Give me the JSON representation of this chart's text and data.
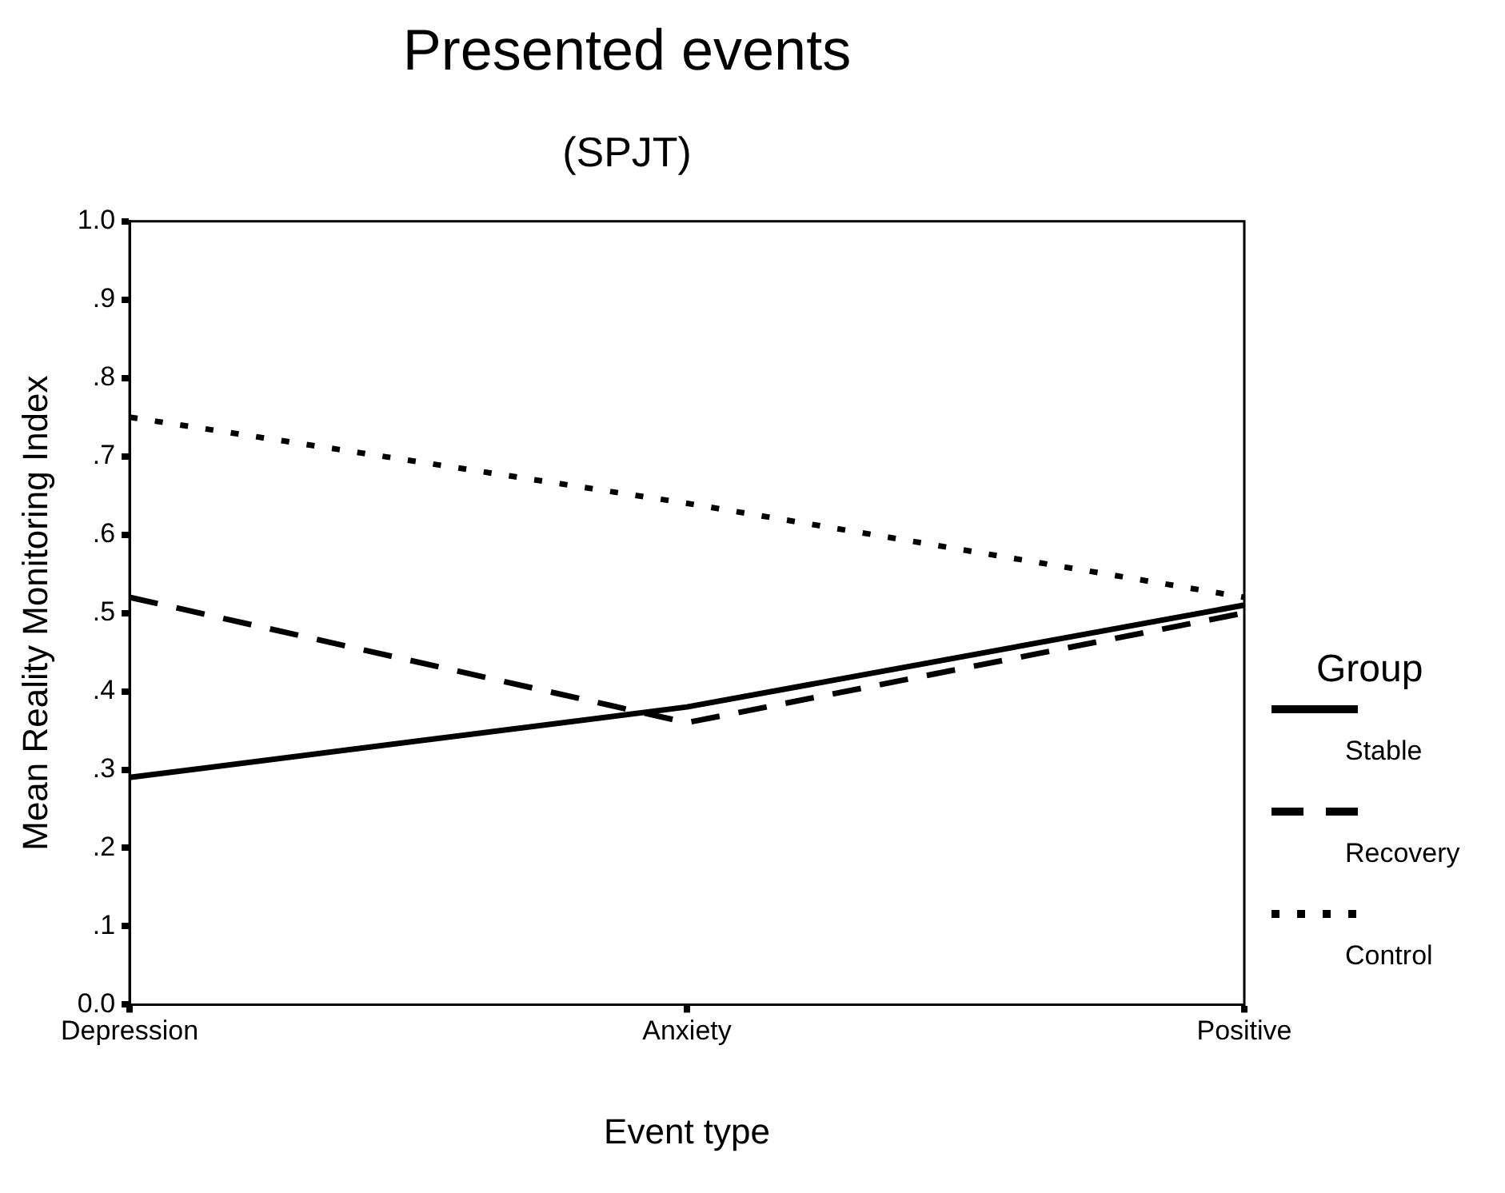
{
  "chart_data": {
    "type": "line",
    "title": "Presented events",
    "subtitle": "(SPJT)",
    "xlabel": "Event type",
    "ylabel": "Mean Reality Monitoring Index",
    "categories": [
      "Depression",
      "Anxiety",
      "Positive"
    ],
    "series": [
      {
        "name": "Stable",
        "color": "#000000",
        "line_style": "solid",
        "values": [
          0.29,
          0.38,
          0.51
        ]
      },
      {
        "name": "Recovery",
        "color": "#000000",
        "line_style": "dashed",
        "values": [
          0.52,
          0.36,
          0.5
        ]
      },
      {
        "name": "Control",
        "color": "#000000",
        "line_style": "dotted",
        "values": [
          0.75,
          0.64,
          0.52
        ]
      }
    ],
    "ylim": [
      0,
      1
    ],
    "yticks": [
      {
        "value": 0,
        "label": "0.0"
      },
      {
        "value": 0.1,
        "label": ".1"
      },
      {
        "value": 0.2,
        "label": ".2"
      },
      {
        "value": 0.3,
        "label": ".3"
      },
      {
        "value": 0.4,
        "label": ".4"
      },
      {
        "value": 0.5,
        "label": ".5"
      },
      {
        "value": 0.6,
        "label": ".6"
      },
      {
        "value": 0.7,
        "label": ".7"
      },
      {
        "value": 0.8,
        "label": ".8"
      },
      {
        "value": 0.9,
        "label": ".9"
      },
      {
        "value": 1,
        "label": "1.0"
      }
    ],
    "grid": false,
    "legend": "right",
    "legend_title": "Group",
    "marker": "none"
  }
}
